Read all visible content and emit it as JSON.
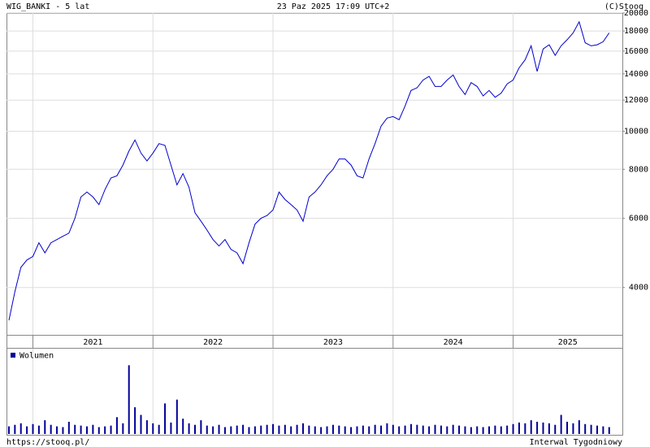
{
  "header": {
    "left": "WIG_BANKI - 5 lat",
    "center": "23 Paz 2025 17:09 UTC+2",
    "right": "(C)Stooq"
  },
  "footer": {
    "left": "https://stooq.pl/",
    "right": "Interwal Tygodniowy"
  },
  "chart_data": [
    {
      "type": "line",
      "color": "#0000cc",
      "log": true,
      "grid": true,
      "xlim": [
        2020.78,
        2025.91
      ],
      "xticks": [
        {
          "value": 2021,
          "label": "2021"
        },
        {
          "value": 2022,
          "label": "2022"
        },
        {
          "value": 2023,
          "label": "2023"
        },
        {
          "value": 2024,
          "label": "2024"
        },
        {
          "value": 2025,
          "label": "2025"
        }
      ],
      "ylim": [
        3030,
        20000
      ],
      "yticks": [
        4000,
        6000,
        8000,
        10000,
        12000,
        14000,
        16000,
        18000,
        20000
      ],
      "x": [
        2020.8,
        2020.85,
        2020.9,
        2020.95,
        2021,
        2021.05,
        2021.1,
        2021.15,
        2021.2,
        2021.25,
        2021.3,
        2021.35,
        2021.4,
        2021.45,
        2021.5,
        2021.55,
        2021.6,
        2021.65,
        2021.7,
        2021.75,
        2021.8,
        2021.85,
        2021.9,
        2021.95,
        2022,
        2022.05,
        2022.1,
        2022.15,
        2022.2,
        2022.25,
        2022.3,
        2022.35,
        2022.4,
        2022.45,
        2022.5,
        2022.55,
        2022.6,
        2022.65,
        2022.7,
        2022.75,
        2022.8,
        2022.85,
        2022.9,
        2022.95,
        2023,
        2023.05,
        2023.1,
        2023.15,
        2023.2,
        2023.25,
        2023.3,
        2023.35,
        2023.4,
        2023.45,
        2023.5,
        2023.55,
        2023.6,
        2023.65,
        2023.7,
        2023.75,
        2023.8,
        2023.85,
        2023.9,
        2023.95,
        2024,
        2024.05,
        2024.1,
        2024.15,
        2024.2,
        2024.25,
        2024.3,
        2024.35,
        2024.4,
        2024.45,
        2024.5,
        2024.55,
        2024.6,
        2024.65,
        2024.7,
        2024.75,
        2024.8,
        2024.85,
        2024.9,
        2024.95,
        2025,
        2025.05,
        2025.1,
        2025.15,
        2025.2,
        2025.25,
        2025.3,
        2025.35,
        2025.4,
        2025.45,
        2025.5,
        2025.55,
        2025.6,
        2025.65,
        2025.7,
        2025.75,
        2025.8
      ],
      "values": [
        3300,
        3900,
        4500,
        4700,
        4800,
        5200,
        4900,
        5200,
        5300,
        5400,
        5500,
        6000,
        6800,
        7000,
        6800,
        6500,
        7100,
        7600,
        7700,
        8200,
        8900,
        9500,
        8800,
        8400,
        8800,
        9300,
        9200,
        8200,
        7300,
        7800,
        7200,
        6200,
        5900,
        5600,
        5300,
        5100,
        5300,
        5000,
        4900,
        4600,
        5200,
        5800,
        6000,
        6100,
        6300,
        7000,
        6700,
        6500,
        6300,
        5900,
        6800,
        7000,
        7300,
        7700,
        8000,
        8500,
        8500,
        8200,
        7700,
        7600,
        8500,
        9300,
        10300,
        10800,
        10900,
        10700,
        11600,
        12700,
        12900,
        13500,
        13800,
        13000,
        13000,
        13500,
        13900,
        13000,
        12400,
        13300,
        13000,
        12300,
        12700,
        12200,
        12500,
        13200,
        13500,
        14500,
        15200,
        16500,
        14200,
        16200,
        16600,
        15600,
        16500,
        17100,
        17800,
        19000,
        16800,
        16500,
        16600,
        16900,
        17800
      ]
    },
    {
      "type": "bar",
      "grid": true,
      "xlim": [
        2020.78,
        2025.91
      ],
      "xticks": [
        2021,
        2022,
        2023,
        2024,
        2025
      ],
      "ylim": [
        0,
        100
      ],
      "x": [
        2020.8,
        2020.85,
        2020.9,
        2020.95,
        2021,
        2021.05,
        2021.1,
        2021.15,
        2021.2,
        2021.25,
        2021.3,
        2021.35,
        2021.4,
        2021.45,
        2021.5,
        2021.55,
        2021.6,
        2021.65,
        2021.7,
        2021.75,
        2021.8,
        2021.85,
        2021.9,
        2021.95,
        2022,
        2022.05,
        2022.1,
        2022.15,
        2022.2,
        2022.25,
        2022.3,
        2022.35,
        2022.4,
        2022.45,
        2022.5,
        2022.55,
        2022.6,
        2022.65,
        2022.7,
        2022.75,
        2022.8,
        2022.85,
        2022.9,
        2022.95,
        2023,
        2023.05,
        2023.1,
        2023.15,
        2023.2,
        2023.25,
        2023.3,
        2023.35,
        2023.4,
        2023.45,
        2023.5,
        2023.55,
        2023.6,
        2023.65,
        2023.7,
        2023.75,
        2023.8,
        2023.85,
        2023.9,
        2023.95,
        2024,
        2024.05,
        2024.1,
        2024.15,
        2024.2,
        2024.25,
        2024.3,
        2024.35,
        2024.4,
        2024.45,
        2024.5,
        2024.55,
        2024.6,
        2024.65,
        2024.7,
        2024.75,
        2024.8,
        2024.85,
        2024.9,
        2024.95,
        2025,
        2025.05,
        2025.1,
        2025.15,
        2025.2,
        2025.25,
        2025.3,
        2025.35,
        2025.4,
        2025.45,
        2025.5,
        2025.55,
        2025.6,
        2025.65,
        2025.7,
        2025.75,
        2025.8
      ],
      "series": [
        {
          "name": "Wolumen",
          "color": "#000099",
          "values": [
            10,
            12,
            14,
            10,
            13,
            11,
            18,
            12,
            10,
            9,
            16,
            12,
            11,
            10,
            12,
            9,
            10,
            11,
            22,
            14,
            90,
            35,
            25,
            18,
            14,
            12,
            40,
            15,
            45,
            20,
            14,
            12,
            18,
            11,
            10,
            12,
            9,
            10,
            11,
            12,
            9,
            10,
            11,
            12,
            13,
            11,
            12,
            10,
            12,
            14,
            11,
            10,
            9,
            10,
            12,
            11,
            10,
            9,
            10,
            11,
            10,
            12,
            11,
            14,
            12,
            10,
            11,
            13,
            12,
            11,
            10,
            12,
            11,
            10,
            12,
            11,
            10,
            9,
            10,
            9,
            10,
            11,
            10,
            11,
            13,
            15,
            14,
            18,
            16,
            15,
            14,
            12,
            25,
            16,
            14,
            18,
            13,
            12,
            11,
            10,
            9
          ]
        }
      ]
    }
  ]
}
